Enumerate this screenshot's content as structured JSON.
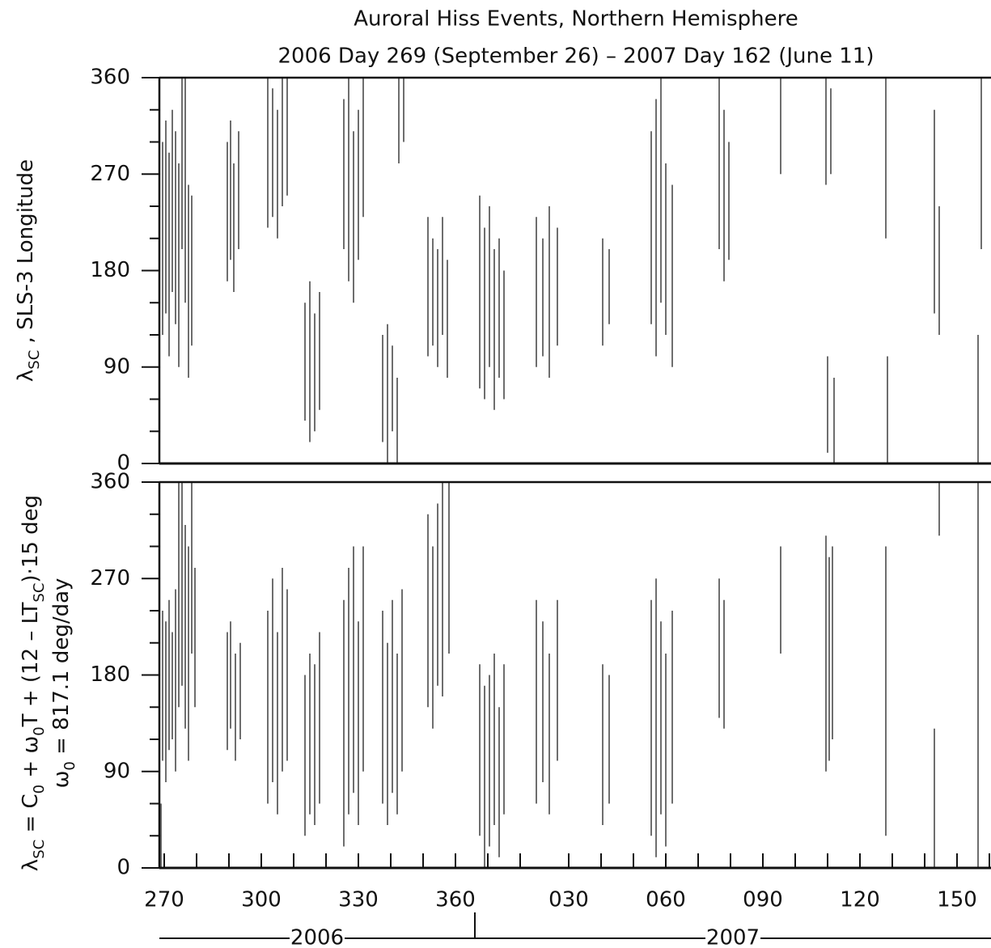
{
  "chart_data": [
    {
      "type": "segments",
      "title": "Auroral Hiss Events, Northern Hemisphere",
      "subtitle": "2006  Day 269  (September 26) – 2007  Day 162  (June 11)",
      "ylabel": [
        {
          "text": "λ"
        },
        {
          "text": "SC",
          "sub": true
        },
        {
          "text": " ,  SLS-3 Longitude"
        }
      ],
      "color": "#4a4a4a",
      "xlim": [
        268.5,
        525.5
      ],
      "ylim": [
        0,
        360
      ],
      "yticks": [
        0,
        90,
        180,
        270,
        360
      ],
      "yminor": [
        30,
        60,
        120,
        150,
        210,
        240,
        300,
        330
      ],
      "x": [
        269.5,
        270.5,
        271.5,
        272.5,
        273.5,
        274.5,
        275.5,
        276.5,
        277.5,
        278.5,
        289.5,
        290.5,
        291.5,
        293,
        302,
        303.5,
        305,
        306.5,
        308,
        313.5,
        315,
        316.5,
        318,
        325.5,
        327,
        328.5,
        330,
        331.5,
        337.5,
        339,
        340.5,
        342,
        342.5,
        344,
        351.5,
        353,
        354.5,
        356,
        357.5,
        367.5,
        369,
        370.5,
        372,
        373.5,
        375,
        385,
        387,
        389,
        391.5,
        405.5,
        407.5,
        420.5,
        422,
        423.5,
        425,
        427,
        441.5,
        443,
        444.5,
        460.5,
        474.5,
        476,
        475,
        477,
        493,
        493.5,
        508,
        509.5,
        521.5,
        522.5
      ],
      "low": [
        120,
        140,
        100,
        160,
        130,
        90,
        200,
        150,
        80,
        110,
        170,
        190,
        160,
        200,
        220,
        230,
        210,
        240,
        250,
        40,
        20,
        30,
        50,
        200,
        170,
        150,
        190,
        230,
        20,
        0,
        30,
        0,
        280,
        300,
        100,
        110,
        90,
        120,
        80,
        70,
        60,
        90,
        50,
        80,
        60,
        90,
        100,
        80,
        110,
        110,
        130,
        130,
        100,
        150,
        120,
        90,
        200,
        170,
        190,
        270,
        260,
        270,
        10,
        0,
        210,
        0,
        140,
        120,
        0,
        200
      ],
      "high": [
        300,
        320,
        290,
        330,
        310,
        280,
        360,
        360,
        260,
        250,
        300,
        320,
        280,
        310,
        360,
        350,
        330,
        360,
        360,
        150,
        170,
        140,
        160,
        340,
        360,
        310,
        330,
        360,
        120,
        130,
        110,
        80,
        360,
        360,
        230,
        210,
        200,
        230,
        190,
        250,
        220,
        240,
        200,
        210,
        180,
        230,
        210,
        240,
        220,
        210,
        200,
        310,
        340,
        360,
        280,
        260,
        360,
        330,
        300,
        360,
        360,
        350,
        100,
        80,
        360,
        100,
        330,
        240,
        120,
        360
      ]
    },
    {
      "type": "segments",
      "ylabel": [
        [
          {
            "text": "λ"
          },
          {
            "text": "SC",
            "sub": true
          },
          {
            "text": " = C"
          },
          {
            "text": "0",
            "sub": true
          },
          {
            "text": " + ω"
          },
          {
            "text": "0",
            "sub": true
          },
          {
            "text": "T + (12 – LT"
          },
          {
            "text": "SC",
            "sub": true
          },
          {
            "text": ")·15 deg"
          }
        ],
        [
          {
            "text": "ω"
          },
          {
            "text": "0",
            "sub": true
          },
          {
            "text": " = 817.1 deg/day"
          }
        ]
      ],
      "color": "#4a4a4a",
      "xlim": [
        268.5,
        525.5
      ],
      "ylim": [
        0,
        360
      ],
      "yticks": [
        0,
        90,
        180,
        270,
        360
      ],
      "yminor": [
        30,
        60,
        120,
        150,
        210,
        240,
        300,
        330
      ],
      "xticks": [
        270,
        300,
        330,
        360,
        {
          "value": 395,
          "label": "030"
        },
        {
          "value": 425,
          "label": "060"
        },
        {
          "value": 455,
          "label": "090"
        },
        {
          "value": 485,
          "label": "120"
        },
        {
          "value": 515,
          "label": "150"
        }
      ],
      "xminor": [
        280,
        290,
        310,
        320,
        340,
        350,
        370,
        380,
        405,
        415,
        435,
        445,
        465,
        475,
        495,
        505,
        525
      ],
      "year_divider": 366,
      "years": [
        "2006",
        "2007"
      ],
      "x": [
        269,
        269.5,
        270.5,
        271.5,
        272.5,
        273.5,
        274.5,
        275.5,
        276.5,
        277.5,
        278.5,
        279.5,
        289.5,
        290.5,
        292,
        293.5,
        302,
        303.5,
        305,
        306.5,
        308,
        313.5,
        315,
        316.5,
        318,
        325.5,
        327,
        328.5,
        330,
        331.5,
        337.5,
        339,
        340.5,
        342,
        343.5,
        351.5,
        353,
        354.5,
        356,
        358,
        367.5,
        369,
        370.5,
        372,
        373.5,
        375,
        385,
        387,
        389,
        391.5,
        405.5,
        407.5,
        420.5,
        422,
        423.5,
        425,
        427,
        441.5,
        443,
        460.5,
        474.5,
        475.5,
        476.5,
        493,
        508,
        509.5,
        521.5
      ],
      "low": [
        0,
        100,
        80,
        110,
        120,
        90,
        150,
        170,
        130,
        100,
        200,
        150,
        110,
        130,
        100,
        120,
        60,
        80,
        50,
        90,
        100,
        30,
        50,
        40,
        60,
        20,
        50,
        70,
        40,
        90,
        60,
        40,
        70,
        50,
        90,
        150,
        130,
        170,
        160,
        200,
        30,
        0,
        20,
        40,
        10,
        50,
        60,
        80,
        50,
        100,
        40,
        60,
        30,
        10,
        50,
        20,
        60,
        140,
        130,
        200,
        90,
        100,
        120,
        30,
        0,
        310,
        0
      ],
      "high": [
        60,
        240,
        230,
        250,
        220,
        260,
        360,
        360,
        320,
        300,
        360,
        280,
        220,
        230,
        200,
        210,
        240,
        270,
        220,
        280,
        260,
        180,
        200,
        190,
        220,
        250,
        280,
        300,
        230,
        300,
        240,
        210,
        250,
        200,
        260,
        330,
        300,
        340,
        360,
        360,
        190,
        170,
        180,
        200,
        150,
        190,
        250,
        230,
        200,
        250,
        190,
        180,
        250,
        270,
        230,
        200,
        240,
        270,
        250,
        300,
        310,
        290,
        300,
        300,
        130,
        360,
        360
      ]
    }
  ]
}
